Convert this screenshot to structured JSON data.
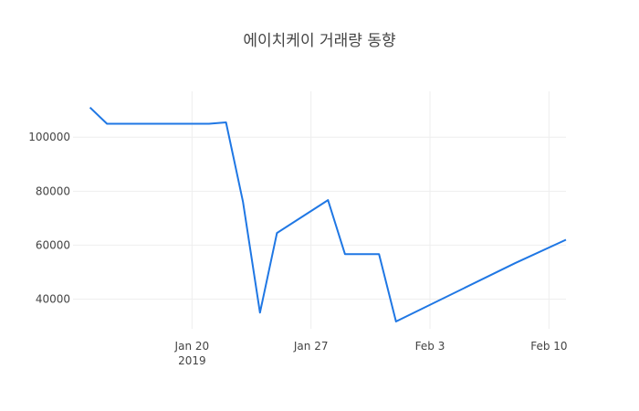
{
  "chart_data": {
    "type": "line",
    "title": "에이치케이 거래량 동향",
    "xlabel": "",
    "ylabel": "",
    "x_axis_type": "date",
    "xlim": [
      "2019-01-13",
      "2019-02-11"
    ],
    "ylim": [
      29000,
      117000
    ],
    "yticks": [
      40000,
      60000,
      80000,
      100000
    ],
    "xticks": [
      {
        "date": "2019-01-20",
        "label": "Jan 20",
        "sublabel": "2019"
      },
      {
        "date": "2019-01-27",
        "label": "Jan 27",
        "sublabel": ""
      },
      {
        "date": "2019-02-03",
        "label": "Feb 3",
        "sublabel": ""
      },
      {
        "date": "2019-02-10",
        "label": "Feb 10",
        "sublabel": ""
      }
    ],
    "grid": true,
    "series": [
      {
        "color": "#1f77e4",
        "x": [
          "2019-01-14",
          "2019-01-15",
          "2019-01-16",
          "2019-01-17",
          "2019-01-18",
          "2019-01-21",
          "2019-01-22",
          "2019-01-23",
          "2019-01-24",
          "2019-01-25",
          "2019-01-28",
          "2019-01-29",
          "2019-01-30",
          "2019-01-31",
          "2019-02-01",
          "2019-02-08",
          "2019-02-11"
        ],
        "values": [
          111000,
          105000,
          105000,
          105000,
          105000,
          105000,
          105500,
          76000,
          35000,
          64500,
          76700,
          56700,
          56700,
          56700,
          31700,
          53300,
          62000
        ]
      }
    ]
  }
}
